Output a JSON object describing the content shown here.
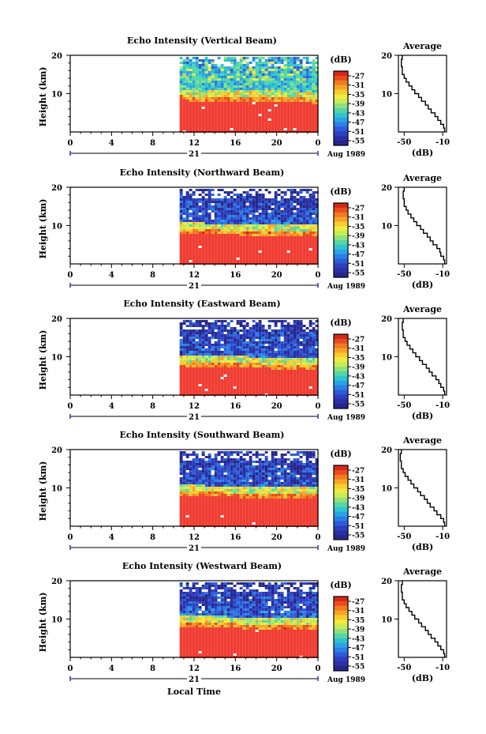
{
  "figure": {
    "xlabel": "Local Time",
    "colorbar_label": "(dB)",
    "colorbar_ticks": [
      "-27",
      "-31",
      "-35",
      "-39",
      "-43",
      "-47",
      "-51",
      "-55"
    ],
    "colorbar_colors": [
      "#d42818",
      "#ea4b1c",
      "#f27a21",
      "#f7a426",
      "#f8cc31",
      "#eeec40",
      "#c6ec58",
      "#8fe07a",
      "#55d6a6",
      "#2fc5cf",
      "#27a4e6",
      "#2b7fe5",
      "#2e5bd8",
      "#2d3fc0",
      "#2a2fa2",
      "#26268a"
    ],
    "high_color": "#f03d33",
    "day_label": "21",
    "month_label": "Aug 1989",
    "xticks": [
      "0",
      "4",
      "8",
      "12",
      "16",
      "20",
      "0"
    ],
    "yticks": [
      "20",
      "10"
    ],
    "ylabel": "Height (km)",
    "avg_title": "Average",
    "avg_xlabel": "(dB)",
    "avg_xticks": [
      "-50",
      "-10"
    ],
    "avg_yticks": [
      "20",
      "10"
    ]
  },
  "chart_data": [
    {
      "type": "heatmap",
      "title": "Echo Intensity (Vertical Beam)",
      "x_range_hours": [
        0,
        24
      ],
      "data_start_hour": 10.6,
      "ylim_km": [
        0,
        20
      ],
      "strong_echo_top_km": [
        8.5,
        7.8
      ],
      "colorbar_range_db": [
        -57,
        -25
      ]
    },
    {
      "type": "heatmap",
      "title": "Echo Intensity (Northward Beam)",
      "x_range_hours": [
        0,
        24
      ],
      "data_start_hour": 10.6,
      "ylim_km": [
        0,
        20
      ],
      "strong_echo_top_km": [
        8.0,
        7.6
      ],
      "colorbar_range_db": [
        -57,
        -25
      ]
    },
    {
      "type": "heatmap",
      "title": "Echo Intensity (Eastward Beam)",
      "x_range_hours": [
        0,
        24
      ],
      "data_start_hour": 10.6,
      "ylim_km": [
        0,
        20
      ],
      "strong_echo_top_km": [
        7.6,
        7.0
      ],
      "colorbar_range_db": [
        -57,
        -25
      ]
    },
    {
      "type": "heatmap",
      "title": "Echo Intensity (Southward Beam)",
      "x_range_hours": [
        0,
        24
      ],
      "data_start_hour": 10.6,
      "ylim_km": [
        0,
        20
      ],
      "strong_echo_top_km": [
        8.0,
        7.6
      ],
      "colorbar_range_db": [
        -57,
        -25
      ]
    },
    {
      "type": "heatmap",
      "title": "Echo Intensity (Westward Beam)",
      "x_range_hours": [
        0,
        24
      ],
      "data_start_hour": 10.6,
      "ylim_km": [
        0,
        20
      ],
      "strong_echo_top_km": [
        8.2,
        7.4
      ],
      "colorbar_range_db": [
        -57,
        -25
      ]
    },
    {
      "type": "line",
      "title": "Average",
      "xlabel": "(dB)",
      "xlim": [
        -56,
        -6
      ],
      "ylim": [
        0,
        20
      ],
      "x": [
        -8,
        -9,
        -12,
        -15,
        -18,
        -22,
        -25,
        -28,
        -32,
        -35,
        -39,
        -42,
        -45,
        -48,
        -50,
        -52,
        -52,
        -53,
        -53,
        -52
      ],
      "y": [
        0.5,
        1.5,
        2.5,
        3.5,
        4.5,
        5.5,
        6.5,
        7.5,
        8.5,
        9.5,
        10.5,
        11.5,
        12.5,
        13.5,
        14.5,
        15.5,
        16.5,
        17.5,
        18.5,
        19.5
      ]
    }
  ]
}
